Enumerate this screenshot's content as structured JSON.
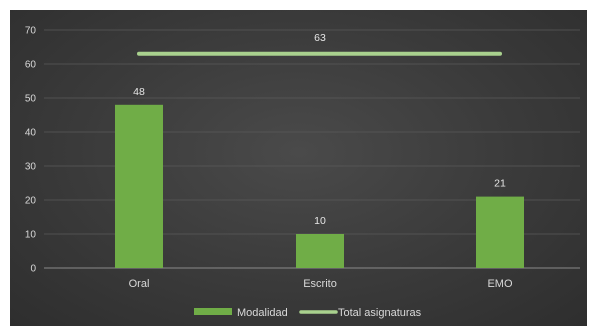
{
  "chart_data": {
    "type": "bar",
    "categories": [
      "Oral",
      "Escrito",
      "EMO"
    ],
    "series": [
      {
        "name": "Modalidad",
        "type": "bar",
        "values": [
          48,
          10,
          21
        ]
      },
      {
        "name": "Total asignaturas",
        "type": "line",
        "value": 63
      }
    ],
    "data_labels": [
      "48",
      "10",
      "21",
      "63"
    ],
    "yticks": [
      0,
      10,
      20,
      30,
      40,
      50,
      60,
      70
    ],
    "ylim": [
      0,
      70
    ],
    "title": "",
    "xlabel": "",
    "ylabel": "",
    "grid": true,
    "legend_position": "bottom",
    "colors": {
      "bar": "#70ad47",
      "line": "#a9d18e",
      "background": "#3a3a3a",
      "grid": "#5a5a5a",
      "text": "#d9d9d9"
    }
  },
  "legend": {
    "bar_label": "Modalidad",
    "line_label": "Total asignaturas"
  }
}
